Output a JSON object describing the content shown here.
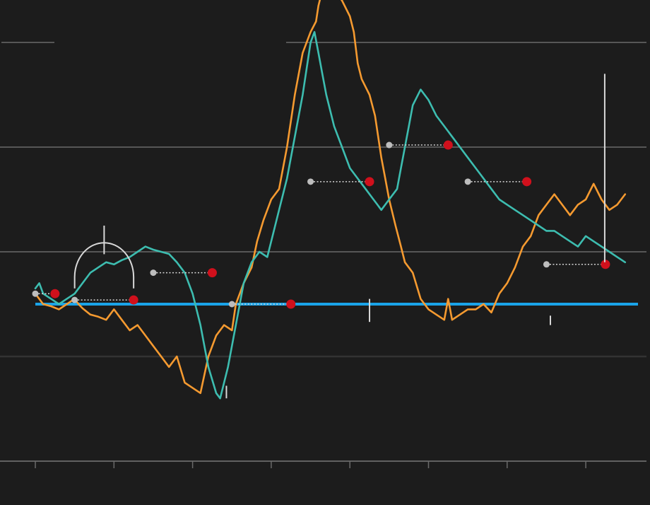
{
  "chart_data": {
    "type": "line",
    "title": "",
    "xlabel": "",
    "ylabel": "",
    "xlim": [
      0,
      7.5
    ],
    "ylim": [
      -1.5,
      3.5
    ],
    "x_ticks": [
      0,
      1,
      2,
      3,
      4,
      5,
      6,
      7
    ],
    "y_gridlines": [
      -1.5,
      -0.5,
      0.5,
      1.5,
      2.5,
      3.5
    ],
    "baseline": 0,
    "colors": {
      "background": "#1c1c1c",
      "grid": "#6a6a6a",
      "grid_dark": "#333333",
      "baseline": "#1aa3e8",
      "orange_series": "#f59a30",
      "teal_series": "#3dbdb0",
      "marker_gray": "#bdbdbd",
      "marker_red": "#d0101c",
      "annotation": "#d8d8d8"
    },
    "series": [
      {
        "color": "orange",
        "x": [
          0,
          0.1,
          0.2,
          0.3,
          0.4,
          0.5,
          0.55,
          0.6,
          0.7,
          0.8,
          0.9,
          1.0,
          1.1,
          1.2,
          1.3,
          1.4,
          1.5,
          1.6,
          1.7,
          1.8,
          1.9,
          2.0,
          2.1,
          2.2,
          2.3,
          2.4,
          2.5,
          2.55,
          2.65,
          2.75,
          2.82,
          2.9,
          3.0,
          3.1,
          3.2,
          3.3,
          3.4,
          3.5,
          3.57,
          3.6,
          3.65,
          3.72,
          3.8,
          3.9,
          4.0,
          4.05,
          4.1,
          4.15,
          4.25,
          4.32,
          4.4,
          4.45,
          4.5,
          4.58,
          4.65,
          4.7,
          4.8,
          4.9,
          5.0,
          5.1,
          5.2,
          5.25,
          5.3,
          5.4,
          5.5,
          5.6,
          5.7,
          5.8,
          5.9,
          6.0,
          6.1,
          6.2,
          6.3,
          6.4,
          6.5,
          6.6,
          6.7,
          6.8,
          6.9,
          7.0,
          7.1,
          7.2,
          7.3,
          7.4,
          7.5
        ],
        "y": [
          0.1,
          0.0,
          -0.02,
          -0.05,
          0.0,
          0.05,
          0.0,
          -0.04,
          -0.1,
          -0.12,
          -0.15,
          -0.05,
          -0.15,
          -0.25,
          -0.2,
          -0.3,
          -0.4,
          -0.5,
          -0.6,
          -0.5,
          -0.75,
          -0.8,
          -0.85,
          -0.5,
          -0.3,
          -0.2,
          -0.25,
          0.0,
          0.2,
          0.35,
          0.6,
          0.8,
          1.0,
          1.1,
          1.5,
          2.0,
          2.4,
          2.6,
          2.7,
          2.85,
          3.0,
          3.1,
          3.0,
          2.9,
          2.75,
          2.6,
          2.3,
          2.15,
          2.0,
          1.8,
          1.4,
          1.2,
          1.0,
          0.75,
          0.55,
          0.4,
          0.3,
          0.05,
          -0.05,
          -0.1,
          -0.15,
          0.05,
          -0.15,
          -0.1,
          -0.05,
          -0.05,
          0.0,
          -0.08,
          0.1,
          0.2,
          0.35,
          0.55,
          0.65,
          0.85,
          0.95,
          1.05,
          0.95,
          0.85,
          0.95,
          1.0,
          1.15,
          1.0,
          0.9,
          0.95,
          1.05
        ]
      },
      {
        "color": "teal",
        "x": [
          0,
          0.05,
          0.1,
          0.2,
          0.3,
          0.4,
          0.5,
          0.6,
          0.7,
          0.8,
          0.9,
          1.0,
          1.1,
          1.2,
          1.3,
          1.4,
          1.5,
          1.6,
          1.7,
          1.8,
          1.9,
          2.0,
          2.1,
          2.2,
          2.3,
          2.35,
          2.45,
          2.55,
          2.65,
          2.75,
          2.85,
          2.95,
          3.0,
          3.1,
          3.2,
          3.3,
          3.4,
          3.5,
          3.55,
          3.6,
          3.65,
          3.7,
          3.8,
          3.9,
          4.0,
          4.1,
          4.2,
          4.3,
          4.35,
          4.4,
          4.5,
          4.6,
          4.65,
          4.7,
          4.75,
          4.8,
          4.9,
          5.0,
          5.1,
          5.2,
          5.3,
          5.4,
          5.5,
          5.6,
          5.7,
          5.8,
          5.9,
          6.0,
          6.1,
          6.2,
          6.3,
          6.4,
          6.5,
          6.6,
          6.7,
          6.8,
          6.9,
          7.0,
          7.1,
          7.2,
          7.3,
          7.4,
          7.5
        ],
        "y": [
          0.15,
          0.2,
          0.1,
          0.05,
          0.0,
          0.05,
          0.1,
          0.2,
          0.3,
          0.35,
          0.4,
          0.38,
          0.42,
          0.45,
          0.5,
          0.55,
          0.52,
          0.5,
          0.48,
          0.4,
          0.3,
          0.1,
          -0.2,
          -0.6,
          -0.85,
          -0.9,
          -0.6,
          -0.2,
          0.2,
          0.4,
          0.5,
          0.45,
          0.6,
          0.9,
          1.2,
          1.6,
          2.0,
          2.5,
          2.6,
          2.4,
          2.2,
          2.0,
          1.7,
          1.5,
          1.3,
          1.2,
          1.1,
          1.0,
          0.95,
          0.9,
          1.0,
          1.1,
          1.3,
          1.5,
          1.7,
          1.9,
          2.05,
          1.95,
          1.8,
          1.7,
          1.6,
          1.5,
          1.4,
          1.3,
          1.2,
          1.1,
          1.0,
          0.95,
          0.9,
          0.85,
          0.8,
          0.75,
          0.7,
          0.7,
          0.65,
          0.6,
          0.55,
          0.65,
          0.6,
          0.55,
          0.5,
          0.45,
          0.4
        ]
      }
    ],
    "forecast_pairs": [
      {
        "x_start": 0.0,
        "x_end": 0.25,
        "y": 0.1
      },
      {
        "x_start": 0.5,
        "x_end": 1.25,
        "y": 0.04
      },
      {
        "x_start": 1.5,
        "x_end": 2.25,
        "y": 0.3
      },
      {
        "x_start": 2.5,
        "x_end": 3.25,
        "y": 0.0
      },
      {
        "x_start": 3.5,
        "x_end": 4.25,
        "y": 1.17
      },
      {
        "x_start": 4.5,
        "x_end": 5.25,
        "y": 1.52
      },
      {
        "x_start": 5.5,
        "x_end": 6.25,
        "y": 1.17
      },
      {
        "x_start": 6.5,
        "x_end": 7.25,
        "y": 0.38
      }
    ],
    "annotation_marks": [
      {
        "x": 2.43,
        "y_from": -0.78,
        "y_to": -0.9
      },
      {
        "x": 4.25,
        "y_from": 0.05,
        "y_to": -0.17
      },
      {
        "x": 6.55,
        "y_from": -0.11,
        "y_to": -0.2
      }
    ],
    "annotation_bracket": {
      "x_start": 0.5,
      "x_end": 1.25,
      "y_top": 0.45,
      "y_bottom": 0.15,
      "stem_to": 0.75
    },
    "annotation_vline": {
      "x": 7.25,
      "y_from": 2.2,
      "y_to": 0.4
    }
  }
}
